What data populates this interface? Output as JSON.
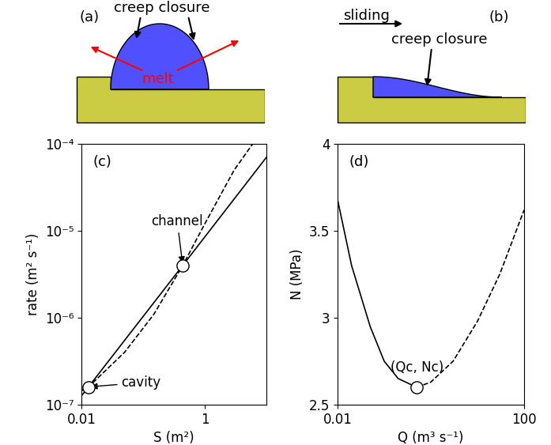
{
  "chart_data": [
    {
      "type": "line",
      "panel_label": "(c)",
      "x_label": "S (m²)",
      "y_label": "rate (m² s⁻¹)",
      "log": true,
      "grid": false,
      "xlim": [
        0.01,
        10
      ],
      "xticks": [
        0.01,
        1
      ],
      "ylim": [
        1e-07,
        0.0001
      ],
      "yticks": [
        {
          "value": 1e-07,
          "label": "10⁻⁷"
        },
        {
          "value": 1e-06,
          "label": "10⁻⁶"
        },
        {
          "value": 1e-05,
          "label": "10⁻⁵"
        },
        {
          "value": 0.0001,
          "label": "10⁻⁴"
        }
      ],
      "series": [
        {
          "color": "black",
          "line_style": "solid",
          "x": [
            0.01,
            0.013,
            0.44,
            10
          ],
          "values": [
            1.26e-07,
            1.6e-07,
            4e-06,
            7e-05
          ]
        },
        {
          "color": "black",
          "line_style": "dashed",
          "x": [
            0.01,
            0.013,
            0.05,
            0.15,
            0.44,
            1,
            3,
            6
          ],
          "values": [
            1.45e-07,
            1.6e-07,
            4e-07,
            1.1e-06,
            4e-06,
            1.2e-05,
            5e-05,
            0.0001
          ]
        }
      ],
      "points": [
        {
          "name": "channel",
          "x": 0.44,
          "y": 4e-06
        },
        {
          "name": "cavity",
          "x": 0.013,
          "y": 1.6e-07
        }
      ]
    },
    {
      "type": "line",
      "panel_label": "(d)",
      "x_label": "Q (m³ s⁻¹)",
      "y_label": "N (MPa)",
      "log": "x",
      "grid": false,
      "xlim": [
        0.01,
        100
      ],
      "xticks": [
        0.01,
        100
      ],
      "ylim": [
        2.5,
        4
      ],
      "yticks": [
        2.5,
        3,
        3.5,
        4
      ],
      "series": [
        {
          "color": "black",
          "line_style": "solid",
          "x": [
            0.01,
            0.02,
            0.05,
            0.1,
            0.2,
            0.5
          ],
          "values": [
            3.68,
            3.3,
            2.95,
            2.75,
            2.65,
            2.6
          ]
        },
        {
          "color": "black",
          "line_style": "dashed",
          "x": [
            0.5,
            1,
            3,
            10,
            30,
            100
          ],
          "values": [
            2.6,
            2.63,
            2.75,
            2.98,
            3.25,
            3.62
          ]
        }
      ],
      "points": [
        {
          "name": "(Qc, Nc)",
          "x": 0.5,
          "y": 2.6
        }
      ]
    }
  ],
  "diagrams": [
    {
      "panel_label": "(a)",
      "labels": [
        "creep closure",
        "melt"
      ]
    },
    {
      "panel_label": "(b)",
      "labels": [
        "sliding",
        "creep closure"
      ]
    }
  ]
}
